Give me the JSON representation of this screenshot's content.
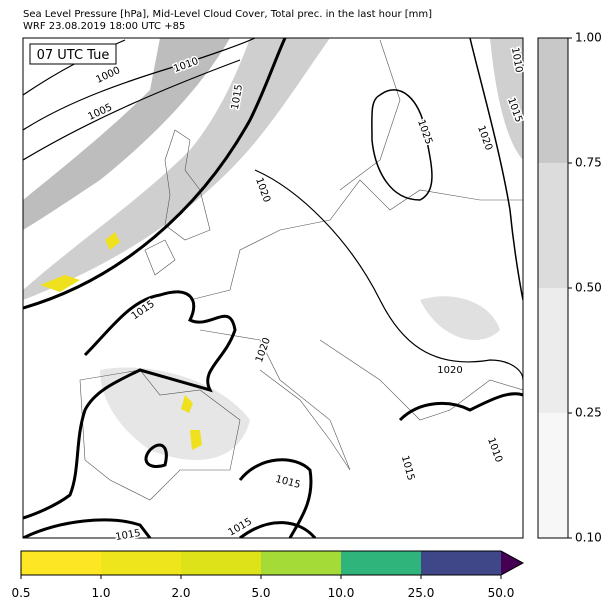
{
  "header": {
    "lines": [
      "Sea Level Pressure [hPa], Mid-Level Cloud Cover, Total prec. in the last hour [mm]",
      "WRF 23.08.2019 18:00 UTC +85"
    ]
  },
  "time_label": "07 UTC Tue",
  "isobar_labels": [
    1000,
    1005,
    1010,
    1015,
    1025,
    1020,
    1020,
    1015,
    1020,
    1020,
    1015,
    1010,
    1015,
    1015,
    1015,
    1010,
    1015
  ],
  "cloud_colorbar": {
    "ticks": [
      {
        "value": 0.1,
        "label": "0.10"
      },
      {
        "value": 0.25,
        "label": "0.25"
      },
      {
        "value": 0.5,
        "label": "0.50"
      },
      {
        "value": 0.75,
        "label": "0.75"
      },
      {
        "value": 1.0,
        "label": "1.00"
      }
    ],
    "colors": [
      "#f7f7f7",
      "#ececec",
      "#dcdcdc",
      "#c8c8c8"
    ]
  },
  "precip_colorbar": {
    "ticks": [
      {
        "value": 0.5,
        "label": "0.5"
      },
      {
        "value": 1,
        "label": "1.0"
      },
      {
        "value": 2,
        "label": "2.0"
      },
      {
        "value": 5,
        "label": "5.0"
      },
      {
        "value": 10,
        "label": "10.0"
      },
      {
        "value": 25,
        "label": "25.0"
      },
      {
        "value": 50,
        "label": "50.0"
      }
    ],
    "colors": [
      "#fde725",
      "#eee51c",
      "#dde318",
      "#a5db36",
      "#2fb47c",
      "#3f4788"
    ],
    "extend_color": "#440154"
  }
}
